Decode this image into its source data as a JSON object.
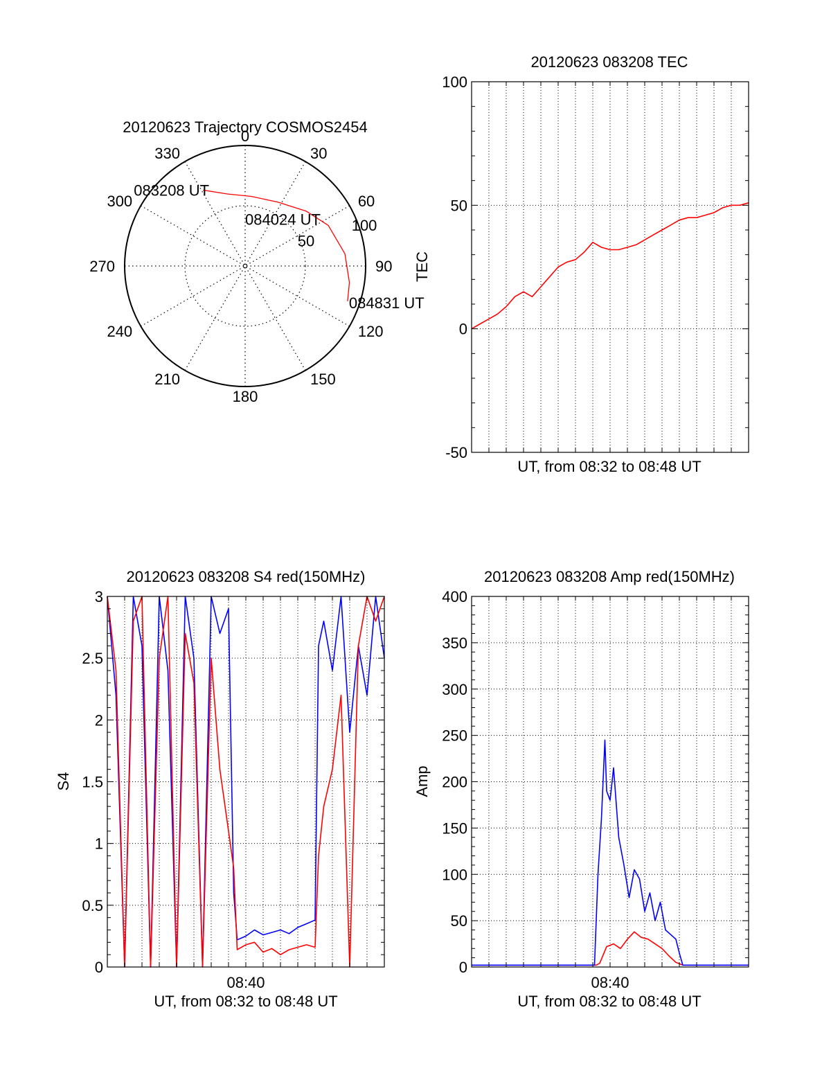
{
  "chart_data": [
    {
      "type": "polar",
      "title": "20120623 Trajectory COSMOS2454",
      "angle_labels": [
        "0",
        "30",
        "60",
        "90",
        "120",
        "150",
        "180",
        "210",
        "240",
        "270",
        "300",
        "330"
      ],
      "radial_labels": [
        "50",
        "100"
      ],
      "radial_range": [
        0,
        100
      ],
      "track_points": [
        {
          "az": 331,
          "r": 72.0,
          "time": "083208 UT"
        },
        {
          "az": 346,
          "r": 61.6
        },
        {
          "az": 5,
          "r": 58.0
        },
        {
          "az": 27,
          "r": 59.5
        },
        {
          "az": 48,
          "r": 68.1,
          "time": "084024 UT"
        },
        {
          "az": 64,
          "r": 76.8
        },
        {
          "az": 83,
          "r": 83.4
        },
        {
          "az": 99,
          "r": 87.6
        },
        {
          "az": 109,
          "r": 89.9,
          "time": "084831 UT"
        }
      ],
      "point_labels": [
        "083208 UT",
        "084024 UT",
        "084831 UT"
      ],
      "colors": {
        "track": "#ff0000"
      }
    },
    {
      "type": "line",
      "title": "20120623 083208 TEC",
      "xlabel": "UT, from 08:32 to 08:48 UT",
      "ylabel": "TEC",
      "ylim": [
        -50,
        100
      ],
      "xlim": [
        0,
        16
      ],
      "y_ticks": [
        "-50",
        "0",
        "50",
        "100"
      ],
      "grid": true,
      "series": [
        {
          "color": "#ff0000",
          "x": [
            0,
            0.5,
            1,
            1.5,
            2,
            2.5,
            3,
            3.5,
            4,
            4.5,
            5,
            5.5,
            6,
            6.5,
            7,
            7.5,
            8,
            8.5,
            9,
            9.5,
            10,
            10.5,
            11,
            11.5,
            12,
            12.5,
            13,
            13.5,
            14,
            14.5,
            15,
            15.5,
            16
          ],
          "values": [
            0,
            2,
            4,
            6,
            9,
            13,
            15,
            13,
            17,
            21,
            25,
            27,
            28,
            31,
            35,
            33,
            32,
            32,
            33,
            34,
            36,
            38,
            40,
            42,
            44,
            45,
            45,
            46,
            47,
            49,
            50,
            50,
            51
          ]
        }
      ]
    },
    {
      "type": "line",
      "title": "20120623 083208 S4 red(150MHz)",
      "xlabel": "UT, from 08:32 to 08:48 UT",
      "ylabel": "S4",
      "ylim": [
        0,
        3
      ],
      "xlim": [
        0,
        16
      ],
      "x_ticks": [
        {
          "x": 8,
          "label": "08:40"
        }
      ],
      "y_ticks": [
        "0",
        "0.5",
        "1",
        "1.5",
        "2",
        "2.5",
        "3"
      ],
      "grid": true,
      "series": [
        {
          "color": "#0000ff",
          "x": [
            0,
            0.5,
            1,
            1.5,
            2,
            2.5,
            3,
            3.5,
            4,
            4.5,
            5,
            5.5,
            6,
            6.5,
            7,
            7.3,
            7.5,
            8,
            8.5,
            9,
            9.5,
            10,
            10.5,
            11,
            11.5,
            12,
            12.2,
            12.5,
            13,
            13.5,
            14,
            14.5,
            15,
            15.5,
            16
          ],
          "values": [
            3,
            2.2,
            0,
            3,
            2.6,
            0,
            3,
            2.4,
            0,
            3,
            2.5,
            0,
            3,
            2.7,
            2.9,
            0.6,
            0.22,
            0.25,
            0.3,
            0.26,
            0.28,
            0.3,
            0.27,
            0.32,
            0.35,
            0.38,
            2.6,
            2.8,
            2.4,
            3,
            1.9,
            2.6,
            2.2,
            3,
            2.5
          ]
        },
        {
          "color": "#ff0000",
          "x": [
            0,
            0.5,
            1,
            1.5,
            2,
            2.5,
            3,
            3.5,
            4,
            4.5,
            5,
            5.5,
            6,
            6.5,
            7,
            7.3,
            7.5,
            8,
            8.5,
            9,
            9.5,
            10,
            10.5,
            11,
            11.5,
            12,
            12.2,
            12.5,
            13,
            13.5,
            14,
            14.5,
            15,
            15.5,
            16
          ],
          "values": [
            3,
            2.4,
            0,
            2.8,
            3,
            0,
            2.5,
            3,
            0,
            2.7,
            2.3,
            0,
            2.5,
            1.6,
            1.1,
            0.8,
            0.14,
            0.18,
            0.2,
            0.12,
            0.15,
            0.1,
            0.14,
            0.16,
            0.18,
            0.16,
            0.9,
            1.3,
            1.6,
            2.2,
            0,
            2.6,
            3,
            2.8,
            3
          ]
        }
      ]
    },
    {
      "type": "line",
      "title": "20120623 083208 Amp red(150MHz)",
      "xlabel": "UT, from 08:32 to 08:48 UT",
      "ylabel": "Amp",
      "ylim": [
        0,
        400
      ],
      "xlim": [
        0,
        16
      ],
      "x_ticks": [
        {
          "x": 8,
          "label": "08:40"
        }
      ],
      "y_ticks": [
        "0",
        "50",
        "100",
        "150",
        "200",
        "250",
        "300",
        "350",
        "400"
      ],
      "grid": true,
      "series": [
        {
          "color": "#ff0000",
          "x": [
            0,
            7.2,
            7.4,
            7.8,
            8.2,
            8.6,
            9,
            9.4,
            9.8,
            10.2,
            10.6,
            11,
            11.4,
            11.8,
            12.2,
            16
          ],
          "values": [
            2,
            2,
            4,
            22,
            25,
            20,
            30,
            38,
            32,
            30,
            25,
            20,
            12,
            5,
            2,
            2
          ]
        },
        {
          "color": "#0000ff",
          "x": [
            0,
            7.1,
            7.3,
            7.5,
            7.7,
            7.8,
            8,
            8.2,
            8.5,
            8.8,
            9.1,
            9.4,
            9.7,
            10,
            10.3,
            10.6,
            10.9,
            11.2,
            11.5,
            11.8,
            12,
            12.2,
            16
          ],
          "values": [
            2,
            2,
            100,
            160,
            245,
            190,
            180,
            215,
            140,
            110,
            75,
            105,
            95,
            60,
            80,
            50,
            70,
            40,
            35,
            30,
            15,
            2,
            2
          ]
        }
      ]
    }
  ]
}
